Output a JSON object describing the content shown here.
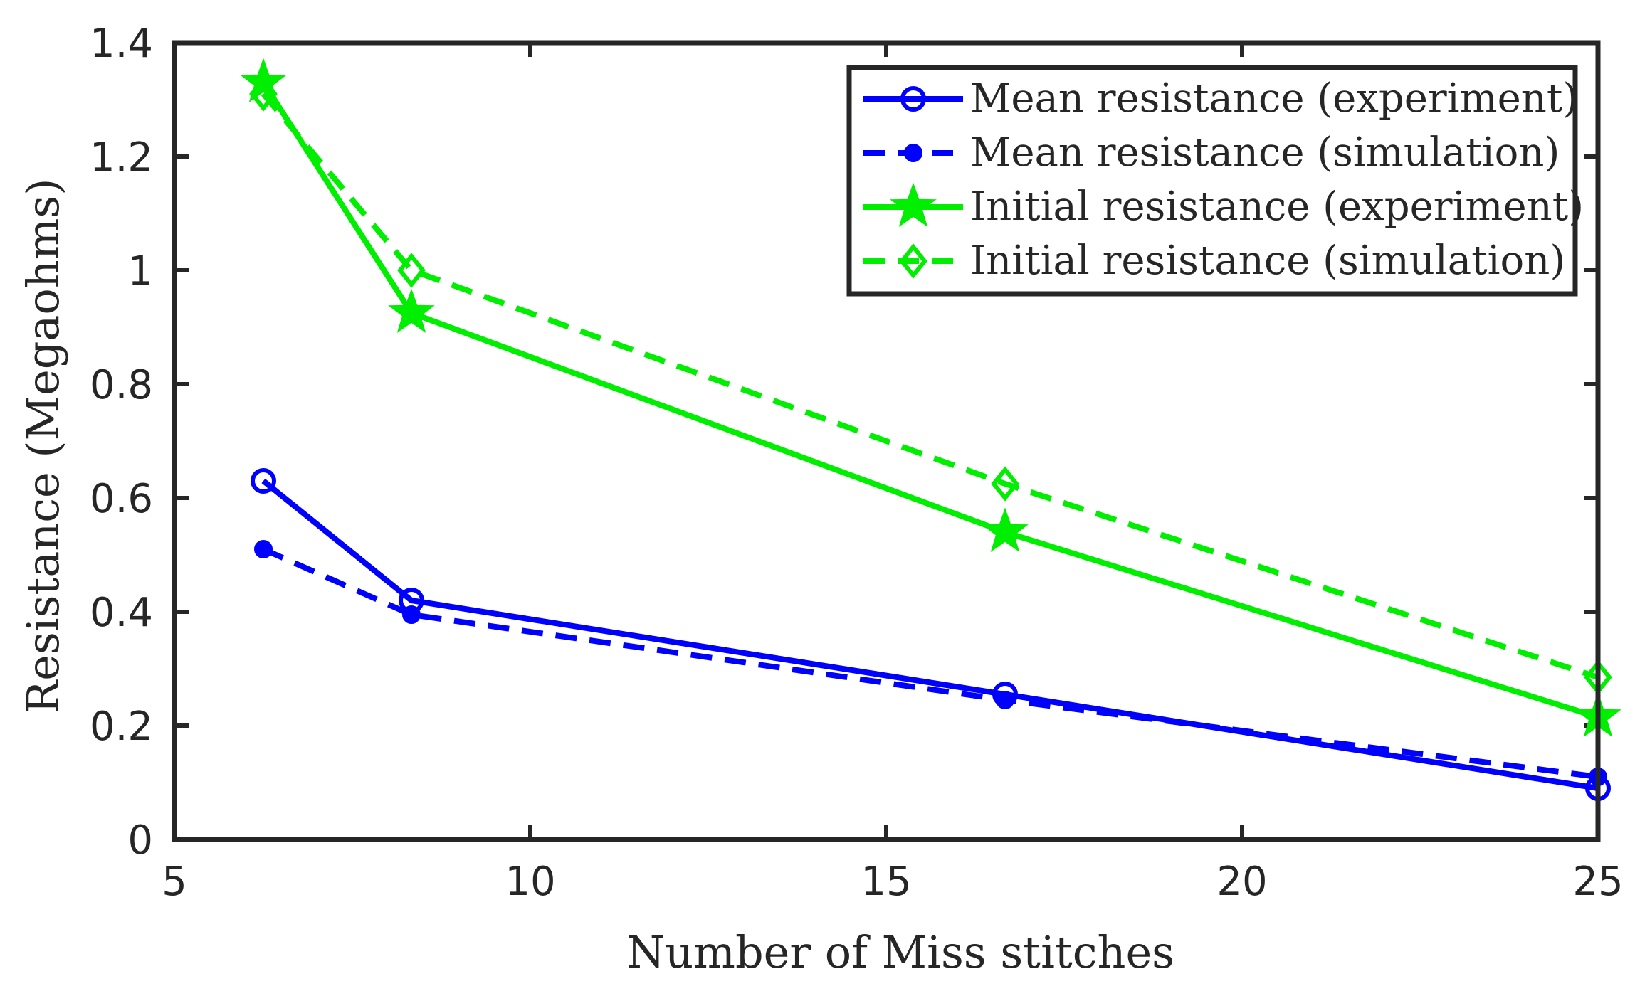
{
  "chart_data": {
    "type": "line",
    "title": "",
    "xlabel": "Number of Miss stitches",
    "ylabel": "Resistance (Megaohms)",
    "xlim": [
      5,
      25
    ],
    "ylim": [
      0,
      1.4
    ],
    "xticks": [
      5,
      10,
      15,
      20,
      25
    ],
    "xtick_labels": [
      "5",
      "10",
      "15",
      "20",
      "25"
    ],
    "yticks": [
      0,
      0.2,
      0.4,
      0.6,
      0.8,
      1.0,
      1.2,
      1.4
    ],
    "ytick_labels": [
      "0",
      "0.2",
      "0.4",
      "0.6",
      "0.8",
      "1",
      "1.2",
      "1.4"
    ],
    "grid": false,
    "legend_position": "top-right",
    "series": [
      {
        "name": "Mean resistance (experiment)",
        "color": "#0000ff",
        "line": "solid",
        "marker": "circle-open",
        "x": [
          6.25,
          8.33,
          16.67,
          25
        ],
        "y": [
          0.63,
          0.42,
          0.255,
          0.09
        ]
      },
      {
        "name": "Mean resistance (simulation)",
        "color": "#0000ff",
        "line": "dashed",
        "marker": "circle-filled",
        "x": [
          6.25,
          8.33,
          16.67,
          25
        ],
        "y": [
          0.51,
          0.395,
          0.245,
          0.11
        ]
      },
      {
        "name": "Initial resistance (experiment)",
        "color": "#00ee00",
        "line": "solid",
        "marker": "star",
        "x": [
          6.25,
          8.33,
          16.67,
          25
        ],
        "y": [
          1.33,
          0.925,
          0.54,
          0.215
        ]
      },
      {
        "name": "Initial resistance (simulation)",
        "color": "#00ee00",
        "line": "dashed",
        "marker": "diamond-open",
        "x": [
          6.25,
          8.33,
          16.67,
          25
        ],
        "y": [
          1.31,
          1.0,
          0.625,
          0.285
        ]
      }
    ]
  }
}
